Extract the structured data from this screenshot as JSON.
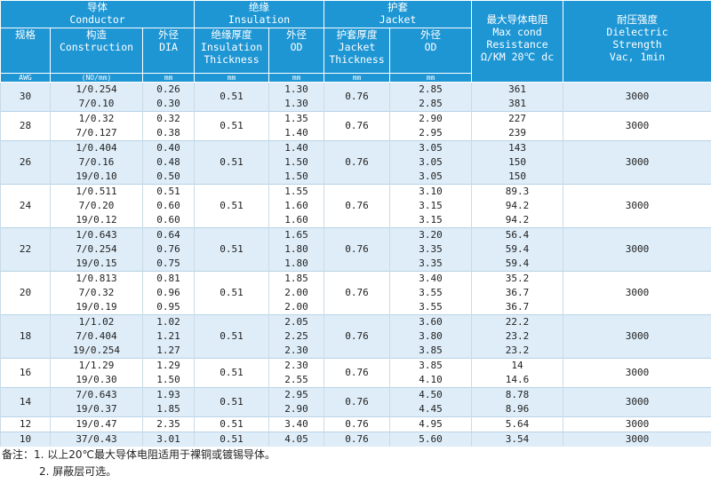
{
  "header_groups": [
    {
      "zh": "导体",
      "en": "Conductor"
    },
    {
      "zh": "绝缘",
      "en": "Insulation"
    },
    {
      "zh": "护套",
      "en": "Jacket"
    }
  ],
  "columns": [
    [
      "规格"
    ],
    [
      "构造",
      "Construction"
    ],
    [
      "外径",
      "DIA"
    ],
    [
      "绝缘厚度",
      "Insulation",
      "Thickness"
    ],
    [
      "外径",
      "OD"
    ],
    [
      "护套厚度",
      "Jacket",
      "Thickness"
    ],
    [
      "外径",
      "OD"
    ],
    [
      "最大导体电阻",
      "Max cond",
      "Resistance",
      "Ω/KM 20℃ dc"
    ],
    [
      "耐压强度",
      "Dielectric",
      "Strength",
      "Vac, 1min"
    ]
  ],
  "units": [
    "AWG",
    "(NO/mm)",
    "mm",
    "mm",
    "mm",
    "mm",
    "mm"
  ],
  "groups": [
    {
      "awg": "30",
      "insulation": "0.51",
      "jacket": "0.76",
      "dielectric": "3000",
      "rows": [
        [
          "1/0.254",
          "0.26",
          "1.30",
          "2.85",
          "361"
        ],
        [
          "7/0.10",
          "0.30",
          "1.30",
          "2.85",
          "381"
        ]
      ]
    },
    {
      "awg": "28",
      "insulation": "0.51",
      "jacket": "0.76",
      "dielectric": "3000",
      "rows": [
        [
          "1/0.32",
          "0.32",
          "1.35",
          "2.90",
          "227"
        ],
        [
          "7/0.127",
          "0.38",
          "1.40",
          "2.95",
          "239"
        ]
      ]
    },
    {
      "awg": "26",
      "insulation": "0.51",
      "jacket": "0.76",
      "dielectric": "3000",
      "rows": [
        [
          "1/0.404",
          "0.40",
          "1.40",
          "3.05",
          "143"
        ],
        [
          "7/0.16",
          "0.48",
          "1.50",
          "3.05",
          "150"
        ],
        [
          "19/0.10",
          "0.50",
          "1.50",
          "3.05",
          "150"
        ]
      ]
    },
    {
      "awg": "24",
      "insulation": "0.51",
      "jacket": "0.76",
      "dielectric": "3000",
      "rows": [
        [
          "1/0.511",
          "0.51",
          "1.55",
          "3.10",
          "89.3"
        ],
        [
          "7/0.20",
          "0.60",
          "1.60",
          "3.15",
          "94.2"
        ],
        [
          "19/0.12",
          "0.60",
          "1.60",
          "3.15",
          "94.2"
        ]
      ]
    },
    {
      "awg": "22",
      "insulation": "0.51",
      "jacket": "0.76",
      "dielectric": "3000",
      "rows": [
        [
          "1/0.643",
          "0.64",
          "1.65",
          "3.20",
          "56.4"
        ],
        [
          "7/0.254",
          "0.76",
          "1.80",
          "3.35",
          "59.4"
        ],
        [
          "19/0.15",
          "0.75",
          "1.80",
          "3.35",
          "59.4"
        ]
      ]
    },
    {
      "awg": "20",
      "insulation": "0.51",
      "jacket": "0.76",
      "dielectric": "3000",
      "rows": [
        [
          "1/0.813",
          "0.81",
          "1.85",
          "3.40",
          "35.2"
        ],
        [
          "7/0.32",
          "0.96",
          "2.00",
          "3.55",
          "36.7"
        ],
        [
          "19/0.19",
          "0.95",
          "2.00",
          "3.55",
          "36.7"
        ]
      ]
    },
    {
      "awg": "18",
      "insulation": "0.51",
      "jacket": "0.76",
      "dielectric": "3000",
      "rows": [
        [
          "1/1.02",
          "1.02",
          "2.05",
          "3.60",
          "22.2"
        ],
        [
          "7/0.404",
          "1.21",
          "2.25",
          "3.80",
          "23.2"
        ],
        [
          "19/0.254",
          "1.27",
          "2.30",
          "3.85",
          "23.2"
        ]
      ]
    },
    {
      "awg": "16",
      "insulation": "0.51",
      "jacket": "0.76",
      "dielectric": "3000",
      "rows": [
        [
          "1/1.29",
          "1.29",
          "2.30",
          "3.85",
          "14"
        ],
        [
          "19/0.30",
          "1.50",
          "2.55",
          "4.10",
          "14.6"
        ]
      ]
    },
    {
      "awg": "14",
      "insulation": "0.51",
      "jacket": "0.76",
      "dielectric": "3000",
      "rows": [
        [
          "7/0.643",
          "1.93",
          "2.95",
          "4.50",
          "8.78"
        ],
        [
          "19/0.37",
          "1.85",
          "2.90",
          "4.45",
          "8.96"
        ]
      ]
    },
    {
      "awg": "12",
      "insulation": "0.51",
      "jacket": "0.76",
      "dielectric": "3000",
      "rows": [
        [
          "19/0.47",
          "2.35",
          "3.40",
          "4.95",
          "5.64"
        ]
      ]
    },
    {
      "awg": "10",
      "insulation": "0.51",
      "jacket": "0.76",
      "dielectric": "3000",
      "rows": [
        [
          "37/0.43",
          "3.01",
          "4.05",
          "5.60",
          "3.54"
        ]
      ]
    }
  ],
  "notes": [
    "备注：1. 以上20℃最大导体电阻适用于裸铜或镀锡导体。",
    "2. 屏蔽层可选。"
  ]
}
